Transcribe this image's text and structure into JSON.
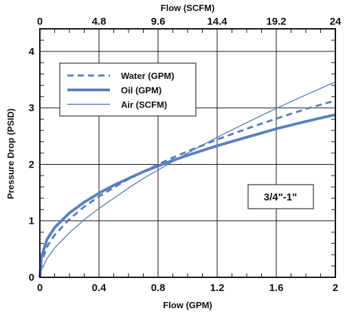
{
  "chart_data": {
    "type": "line",
    "xlabel": "Flow (GPM)",
    "x2label": "Flow (SCFM)",
    "ylabel": "Pressure Drop (PSID)",
    "xlim": [
      0,
      2
    ],
    "x2lim": [
      0,
      24
    ],
    "ylim": [
      0,
      4.4
    ],
    "x_ticks": [
      0,
      0.4,
      0.8,
      1.2,
      1.6,
      2
    ],
    "x_tick_labels": [
      "0",
      "0.4",
      "0.8",
      "1.2",
      "1.6",
      "2"
    ],
    "x2_ticks": [
      0,
      4.8,
      9.6,
      14.4,
      19.2,
      24
    ],
    "x2_tick_labels": [
      "0",
      "4.8",
      "9.6",
      "14.4",
      "19.2",
      "24"
    ],
    "y_ticks": [
      0,
      1,
      2,
      3,
      4
    ],
    "y_tick_labels": [
      "0",
      "1",
      "2",
      "3",
      "4"
    ],
    "grid": true,
    "legend_position": "top-left",
    "annotation": "3/4\"-1\"",
    "series": [
      {
        "name": "Water (GPM)",
        "style": "dashed",
        "color": "#5a7fc0",
        "x": [
          0,
          0.01,
          0.05,
          0.1,
          0.2,
          0.3,
          0.4,
          0.5,
          0.6,
          0.7,
          0.8,
          0.9,
          1.0,
          1.2,
          1.4,
          1.6,
          1.8,
          2.0
        ],
        "y": [
          0,
          0.26,
          0.55,
          0.75,
          1.03,
          1.25,
          1.43,
          1.59,
          1.74,
          1.87,
          2.0,
          2.12,
          2.23,
          2.44,
          2.63,
          2.81,
          2.98,
          3.13
        ]
      },
      {
        "name": "Oil (GPM)",
        "style": "thick",
        "color": "#5a7fc0",
        "x": [
          0,
          0.01,
          0.05,
          0.1,
          0.2,
          0.3,
          0.4,
          0.5,
          0.6,
          0.7,
          0.8,
          0.9,
          1.0,
          1.2,
          1.4,
          1.6,
          1.8,
          2.0
        ],
        "y": [
          0,
          0.36,
          0.68,
          0.88,
          1.14,
          1.33,
          1.49,
          1.63,
          1.75,
          1.87,
          1.97,
          2.07,
          2.16,
          2.33,
          2.48,
          2.63,
          2.76,
          2.88
        ]
      },
      {
        "name": "Air (SCFM)",
        "style": "thin",
        "color": "#5a7fc0",
        "x": [
          0,
          0.01,
          0.05,
          0.1,
          0.2,
          0.3,
          0.4,
          0.5,
          0.6,
          0.7,
          0.8,
          0.9,
          1.0,
          1.2,
          1.4,
          1.6,
          1.8,
          2.0
        ],
        "y": [
          0,
          0.13,
          0.34,
          0.52,
          0.79,
          1.02,
          1.22,
          1.4,
          1.58,
          1.75,
          1.9,
          2.05,
          2.2,
          2.48,
          2.74,
          2.99,
          3.23,
          3.46
        ]
      }
    ]
  }
}
